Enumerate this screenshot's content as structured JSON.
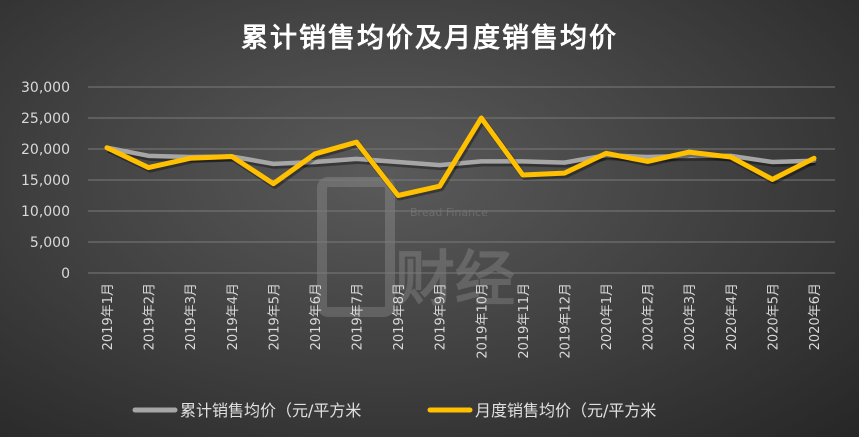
{
  "chart_data": {
    "type": "line",
    "title": "累计销售均价及月度销售均价",
    "categories": [
      "2019年1月",
      "2019年2月",
      "2019年3月",
      "2019年4月",
      "2019年5月",
      "2019年6月",
      "2019年7月",
      "2019年8月",
      "2019年9月",
      "2019年10月",
      "2019年11月",
      "2019年12月",
      "2020年1月",
      "2020年2月",
      "2020年3月",
      "2020年4月",
      "2020年5月",
      "2020年6月"
    ],
    "series": [
      {
        "name": "累计销售均价（元/平方米",
        "color": "#a6a6a6",
        "values": [
          20200,
          18900,
          18700,
          18800,
          17600,
          17900,
          18400,
          17900,
          17400,
          18000,
          18000,
          17800,
          19000,
          18700,
          18900,
          18900,
          17900,
          18100
        ]
      },
      {
        "name": "月度销售均价（元/平方米",
        "color": "#ffc000",
        "values": [
          20200,
          17000,
          18500,
          18800,
          14400,
          19200,
          21100,
          12500,
          14000,
          25000,
          15800,
          16100,
          19300,
          18000,
          19500,
          18700,
          15100,
          18500
        ]
      }
    ],
    "ylim": [
      0,
      30000
    ],
    "yticks": [
      0,
      5000,
      10000,
      15000,
      20000,
      25000,
      30000
    ],
    "ytick_labels": [
      "0",
      "5,000",
      "10,000",
      "15,000",
      "20,000",
      "25,000",
      "30,000"
    ],
    "grid": true,
    "legend_position": "bottom",
    "watermark": "简易财经 Bread Finance"
  }
}
